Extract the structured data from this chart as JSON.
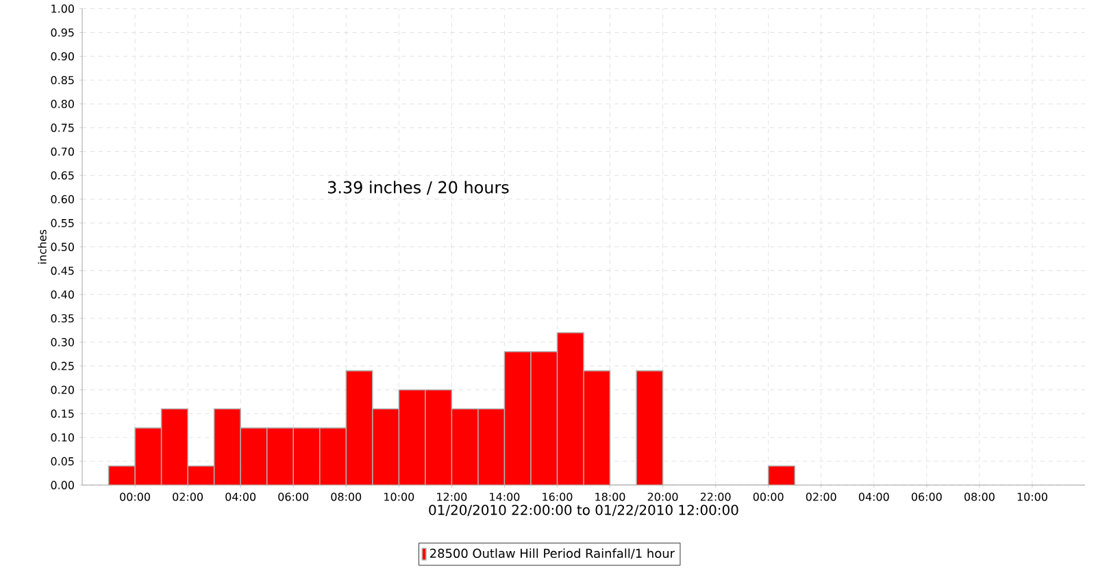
{
  "chart_data": {
    "type": "histogram",
    "xlabel": "01/20/2010 22:00:00 to 01/22/2010 12:00:00",
    "ylabel": "inches",
    "annotations": [
      "3.39 inches / 20 hours"
    ],
    "bins": [
      "2010-01-20T23:00",
      "2010-01-21T00:00",
      "2010-01-21T01:00",
      "2010-01-21T02:00",
      "2010-01-21T03:00",
      "2010-01-21T04:00",
      "2010-01-21T05:00",
      "2010-01-21T06:00",
      "2010-01-21T07:00",
      "2010-01-21T08:00",
      "2010-01-21T09:00",
      "2010-01-21T10:00",
      "2010-01-21T11:00",
      "2010-01-21T12:00",
      "2010-01-21T13:00",
      "2010-01-21T14:00",
      "2010-01-21T15:00",
      "2010-01-21T16:00",
      "2010-01-21T17:00",
      "2010-01-21T18:00",
      "2010-01-21T19:00",
      "2010-01-21T20:00",
      "2010-01-21T21:00",
      "2010-01-21T22:00",
      "2010-01-21T23:00",
      "2010-01-22T00:00",
      "2010-01-22T01:00"
    ],
    "series": [
      {
        "name": "28500 Outlaw Hill Period Rainfall/1 hour",
        "color": "#ff0000",
        "values": [
          0.04,
          0.12,
          0.16,
          0.04,
          0.16,
          0.12,
          0.12,
          0.12,
          0.12,
          0.24,
          0.16,
          0.2,
          0.2,
          0.16,
          0.16,
          0.28,
          0.28,
          0.32,
          0.24,
          0,
          0.24,
          0,
          0,
          0,
          0,
          0.04
        ]
      }
    ],
    "xlim": [
      "2010-01-20T22:00",
      "2010-01-22T12:00"
    ],
    "xticks": [
      {
        "value": "2010-01-21T00:00",
        "label": "00:00"
      },
      {
        "value": "2010-01-21T02:00",
        "label": "02:00"
      },
      {
        "value": "2010-01-21T04:00",
        "label": "04:00"
      },
      {
        "value": "2010-01-21T06:00",
        "label": "06:00"
      },
      {
        "value": "2010-01-21T08:00",
        "label": "08:00"
      },
      {
        "value": "2010-01-21T10:00",
        "label": "10:00"
      },
      {
        "value": "2010-01-21T12:00",
        "label": "12:00"
      },
      {
        "value": "2010-01-21T14:00",
        "label": "14:00"
      },
      {
        "value": "2010-01-21T16:00",
        "label": "16:00"
      },
      {
        "value": "2010-01-21T18:00",
        "label": "18:00"
      },
      {
        "value": "2010-01-21T20:00",
        "label": "20:00"
      },
      {
        "value": "2010-01-21T22:00",
        "label": "22:00"
      },
      {
        "value": "2010-01-22T00:00",
        "label": "00:00"
      },
      {
        "value": "2010-01-22T02:00",
        "label": "02:00"
      },
      {
        "value": "2010-01-22T04:00",
        "label": "04:00"
      },
      {
        "value": "2010-01-22T06:00",
        "label": "06:00"
      },
      {
        "value": "2010-01-22T08:00",
        "label": "08:00"
      },
      {
        "value": "2010-01-22T10:00",
        "label": "10:00"
      }
    ],
    "ylim": [
      0,
      1
    ],
    "yticks": [
      {
        "value": 0,
        "label": "0.00"
      },
      {
        "value": 0.05,
        "label": "0.05"
      },
      {
        "value": 0.1,
        "label": "0.10"
      },
      {
        "value": 0.15,
        "label": "0.15"
      },
      {
        "value": 0.2,
        "label": "0.20"
      },
      {
        "value": 0.25,
        "label": "0.25"
      },
      {
        "value": 0.3,
        "label": "0.30"
      },
      {
        "value": 0.35,
        "label": "0.35"
      },
      {
        "value": 0.4,
        "label": "0.40"
      },
      {
        "value": 0.45,
        "label": "0.45"
      },
      {
        "value": 0.5,
        "label": "0.50"
      },
      {
        "value": 0.55,
        "label": "0.55"
      },
      {
        "value": 0.6,
        "label": "0.60"
      },
      {
        "value": 0.65,
        "label": "0.65"
      },
      {
        "value": 0.7,
        "label": "0.70"
      },
      {
        "value": 0.75,
        "label": "0.75"
      },
      {
        "value": 0.8,
        "label": "0.80"
      },
      {
        "value": 0.85,
        "label": "0.85"
      },
      {
        "value": 0.9,
        "label": "0.90"
      },
      {
        "value": 0.95,
        "label": "0.95"
      },
      {
        "value": 1,
        "label": "1.00"
      }
    ],
    "grid": true,
    "legend": "bottom"
  }
}
